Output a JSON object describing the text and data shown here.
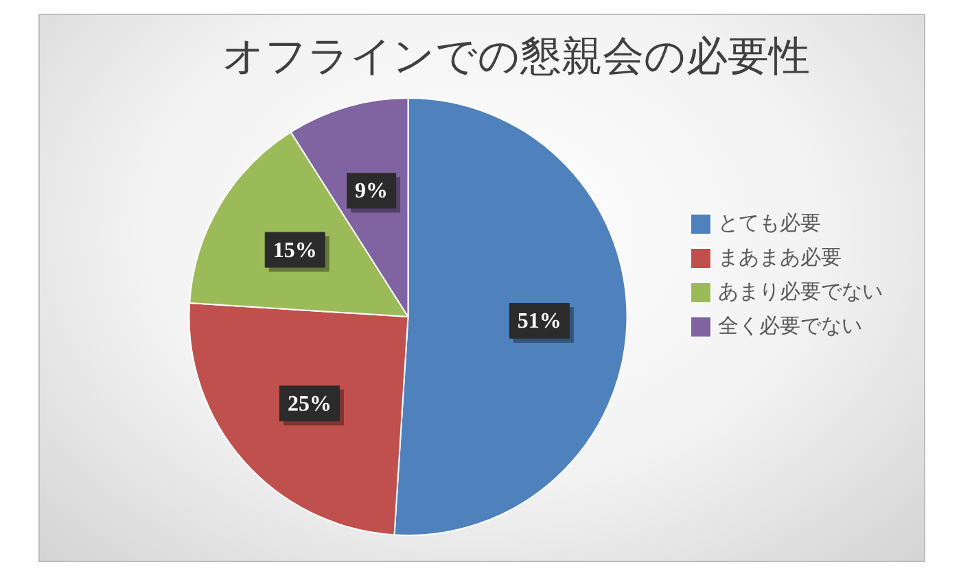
{
  "chart_data": {
    "type": "pie",
    "title": "オフラインでの懇親会の必要性",
    "categories": [
      "とても必要",
      "まあまあ必要",
      "あまり必要でない",
      "全く必要でない"
    ],
    "values": [
      51,
      25,
      15,
      9
    ],
    "colors": [
      "#4f81bd",
      "#c0504d",
      "#9bbb59",
      "#8064a2"
    ],
    "value_labels": [
      "51%",
      "25%",
      "15%",
      "9%"
    ],
    "legend": "right"
  }
}
